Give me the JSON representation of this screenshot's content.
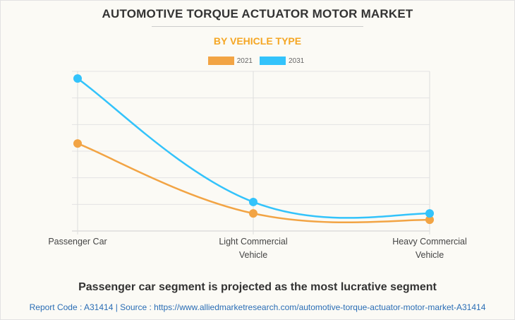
{
  "header": {
    "title": "AUTOMOTIVE TORQUE ACTUATOR MOTOR MARKET",
    "subtitle": "BY VEHICLE TYPE"
  },
  "colors": {
    "series_2021": "#f2a444",
    "series_2031": "#33c3fb",
    "subtitle": "#f5a623",
    "source_text": "#2a6db5"
  },
  "chart_data": {
    "type": "line",
    "title": "AUTOMOTIVE TORQUE ACTUATOR MOTOR MARKET",
    "subtitle": "BY VEHICLE TYPE",
    "categories": [
      "Passenger Car",
      "Light Commercial Vehicle",
      "Heavy Commercial Vehicle"
    ],
    "category_lines": [
      [
        "Passenger Car"
      ],
      [
        "Light Commercial",
        "Vehicle"
      ],
      [
        "Heavy Commercial",
        "Vehicle"
      ]
    ],
    "series": [
      {
        "name": "2021",
        "values": [
          3.29,
          0.66,
          0.42
        ]
      },
      {
        "name": "2031",
        "values": [
          5.73,
          1.09,
          0.66
        ]
      }
    ],
    "xlabel": "",
    "ylabel": "",
    "ylim": [
      0,
      6
    ],
    "y_tick_labels_shown": false,
    "grid": true,
    "legend_position": "top-center",
    "smooth": true
  },
  "footer": {
    "caption": "Passenger car segment is projected as the most lucrative segment",
    "source": "Report Code : A31414  |  Source : https://www.alliedmarketresearch.com/automotive-torque-actuator-motor-market-A31414"
  }
}
